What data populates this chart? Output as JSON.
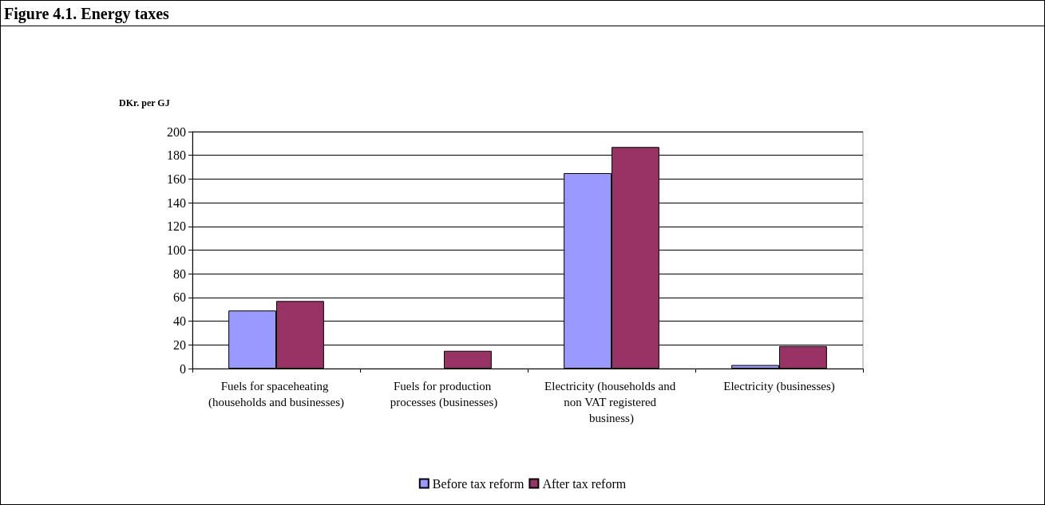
{
  "chart_data": {
    "type": "bar",
    "title": "Figure 4.1. Energy taxes",
    "ylabel": "DKr. per GJ",
    "categories": [
      "Fuels for spaceheating (households and businesses)",
      "Fuels for production processes (businesses)",
      "Electricity (households and non VAT registered business)",
      "Electricity (businesses)"
    ],
    "series": [
      {
        "name": "Before tax reform",
        "color": "#9999ff",
        "values": [
          49,
          null,
          165,
          3
        ]
      },
      {
        "name": "After tax reform",
        "color": "#993366",
        "values": [
          57,
          15,
          187,
          19
        ]
      }
    ],
    "ylim": [
      0,
      200
    ],
    "yticks": [
      0,
      20,
      40,
      60,
      80,
      100,
      120,
      140,
      160,
      180,
      200
    ],
    "grid": "y",
    "legend": "bottom"
  }
}
